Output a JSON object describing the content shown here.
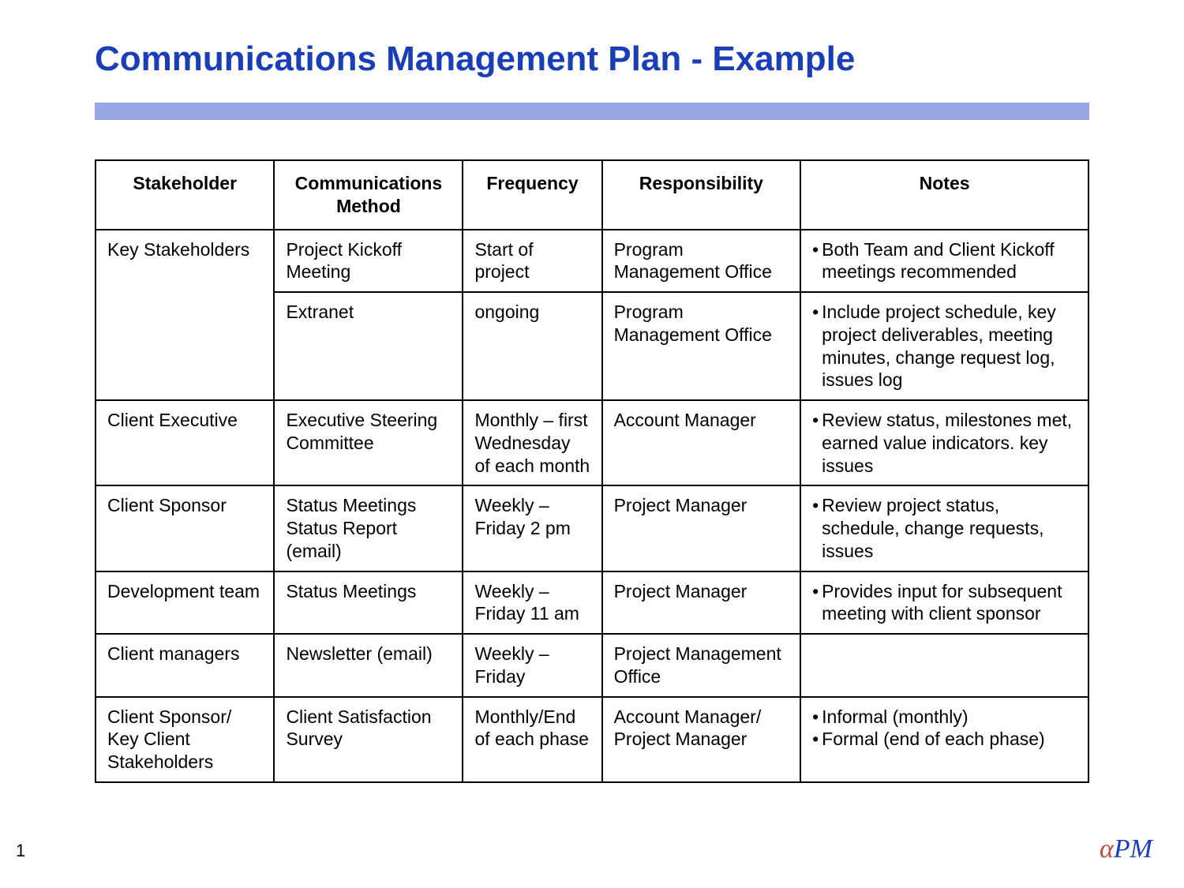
{
  "title": "Communications Management Plan - Example",
  "bar_color": "#99a6e5",
  "title_color": "#1a3db8",
  "page_number": "1",
  "logo": {
    "alpha": "α",
    "pm": "PM",
    "alpha_color": "#b84a4a",
    "pm_color": "#1a3db8"
  },
  "table": {
    "columns": [
      "Stakeholder",
      "Communications Method",
      "Frequency",
      "Responsibility",
      "Notes"
    ],
    "col_widths_pct": [
      18,
      19,
      14,
      20,
      29
    ],
    "rows": [
      {
        "stakeholder": "Key Stakeholders",
        "stakeholder_rowspan": 2,
        "method": "Project Kickoff Meeting",
        "frequency": "Start of project",
        "responsibility": "Program Management Office",
        "notes": [
          "Both Team and Client Kickoff meetings recommended"
        ]
      },
      {
        "stakeholder": "",
        "method": "Extranet",
        "frequency": "ongoing",
        "responsibility": "Program Management Office",
        "notes": [
          "Include project schedule, key project  deliverables, meeting minutes, change request log, issues log"
        ]
      },
      {
        "stakeholder": "Client Executive",
        "method": "Executive Steering Committee",
        "frequency": "Monthly – first Wednesday of each month",
        "responsibility": "Account Manager",
        "notes": [
          "Review status, milestones met, earned value indicators. key issues"
        ]
      },
      {
        "stakeholder": "Client Sponsor",
        "method": "Status Meetings Status Report (email)",
        "frequency": "Weekly – Friday  2 pm",
        "responsibility": "Project Manager",
        "notes": [
          "Review project status, schedule, change requests, issues"
        ]
      },
      {
        "stakeholder": "Development team",
        "method": "Status Meetings",
        "frequency": "Weekly – Friday 11 am",
        "responsibility": "Project Manager",
        "notes": [
          "Provides input for subsequent meeting with client sponsor"
        ]
      },
      {
        "stakeholder": "Client managers",
        "method": "Newsletter (email)",
        "frequency": "Weekly – Friday",
        "responsibility": "Project Management Office",
        "notes": []
      },
      {
        "stakeholder": "Client Sponsor/ Key Client Stakeholders",
        "method": "Client Satisfaction Survey",
        "frequency": "Monthly/End of each phase",
        "responsibility": "Account Manager/ Project Manager",
        "notes": [
          "Informal (monthly)",
          "Formal (end of each phase)"
        ]
      }
    ]
  }
}
